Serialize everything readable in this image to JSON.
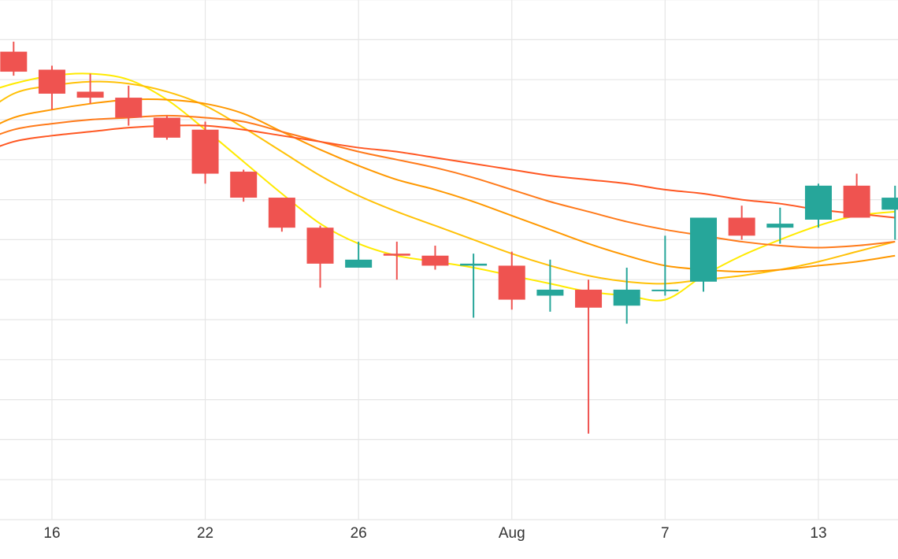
{
  "chart_data": {
    "type": "candlestick",
    "x_tick_labels": [
      {
        "label": "16",
        "index": 1
      },
      {
        "label": "22",
        "index": 5
      },
      {
        "label": "26",
        "index": 9
      },
      {
        "label": "Aug",
        "index": 13
      },
      {
        "label": "7",
        "index": 17
      },
      {
        "label": "13",
        "index": 21
      }
    ],
    "ylim": [
      0,
      13
    ],
    "y_grid_lines": [
      1,
      2,
      3,
      4,
      5,
      6,
      7,
      8,
      9,
      10,
      11,
      12,
      13
    ],
    "grid": true,
    "colors": {
      "up": "#26a69a",
      "down": "#ef5350",
      "ma_lines": [
        "#ffea00",
        "#ffc107",
        "#ff9800",
        "#ff7a1a",
        "#ff5722"
      ]
    },
    "candles": [
      {
        "open": 11.7,
        "high": 11.95,
        "low": 11.1,
        "close": 11.2
      },
      {
        "open": 11.25,
        "high": 11.35,
        "low": 10.25,
        "close": 10.65
      },
      {
        "open": 10.7,
        "high": 11.15,
        "low": 10.4,
        "close": 10.55
      },
      {
        "open": 10.55,
        "high": 10.85,
        "low": 9.85,
        "close": 10.05
      },
      {
        "open": 10.05,
        "high": 10.1,
        "low": 9.5,
        "close": 9.55
      },
      {
        "open": 9.75,
        "high": 9.95,
        "low": 8.4,
        "close": 8.65
      },
      {
        "open": 8.7,
        "high": 8.75,
        "low": 7.95,
        "close": 8.05
      },
      {
        "open": 8.05,
        "high": 8.05,
        "low": 7.2,
        "close": 7.3
      },
      {
        "open": 7.3,
        "high": 7.35,
        "low": 5.8,
        "close": 6.4
      },
      {
        "open": 6.3,
        "high": 6.95,
        "low": 6.3,
        "close": 6.5
      },
      {
        "open": 6.65,
        "high": 6.95,
        "low": 6.0,
        "close": 6.6
      },
      {
        "open": 6.6,
        "high": 6.85,
        "low": 6.25,
        "close": 6.35
      },
      {
        "open": 6.35,
        "high": 6.65,
        "low": 5.05,
        "close": 6.4
      },
      {
        "open": 6.35,
        "high": 6.7,
        "low": 5.25,
        "close": 5.5
      },
      {
        "open": 5.6,
        "high": 6.5,
        "low": 5.2,
        "close": 5.75
      },
      {
        "open": 5.75,
        "high": 6.0,
        "low": 2.15,
        "close": 5.3
      },
      {
        "open": 5.35,
        "high": 6.3,
        "low": 4.9,
        "close": 5.75
      },
      {
        "open": 5.75,
        "high": 7.1,
        "low": 5.6,
        "close": 5.75
      },
      {
        "open": 5.95,
        "high": 7.55,
        "low": 5.7,
        "close": 7.55
      },
      {
        "open": 7.55,
        "high": 7.85,
        "low": 7.0,
        "close": 7.1
      },
      {
        "open": 7.3,
        "high": 7.8,
        "low": 6.9,
        "close": 7.4
      },
      {
        "open": 7.5,
        "high": 8.4,
        "low": 7.3,
        "close": 8.35
      },
      {
        "open": 8.35,
        "high": 8.65,
        "low": 7.6,
        "close": 7.55
      },
      {
        "open": 7.75,
        "high": 8.35,
        "low": 7.0,
        "close": 8.05
      }
    ],
    "ma_series": [
      {
        "values": [
          [
            -1,
            10.6
          ],
          [
            0,
            10.9
          ],
          [
            1,
            11.1
          ],
          [
            2,
            11.15
          ],
          [
            3,
            11.0
          ],
          [
            4,
            10.5
          ],
          [
            5,
            9.75
          ],
          [
            6,
            8.95
          ],
          [
            7,
            8.15
          ],
          [
            8,
            7.4
          ],
          [
            9,
            6.9
          ],
          [
            10,
            6.6
          ],
          [
            11,
            6.45
          ],
          [
            12,
            6.3
          ],
          [
            13,
            6.1
          ],
          [
            14,
            5.9
          ],
          [
            15,
            5.7
          ],
          [
            16,
            5.6
          ],
          [
            17,
            5.5
          ],
          [
            18,
            6.1
          ],
          [
            19,
            6.6
          ],
          [
            20,
            7.0
          ],
          [
            21,
            7.35
          ],
          [
            22,
            7.6
          ],
          [
            23,
            7.7
          ]
        ]
      },
      {
        "values": [
          [
            -1,
            10.0
          ],
          [
            0,
            10.65
          ],
          [
            1,
            10.85
          ],
          [
            2,
            10.95
          ],
          [
            3,
            10.9
          ],
          [
            4,
            10.7
          ],
          [
            5,
            10.35
          ],
          [
            6,
            9.8
          ],
          [
            7,
            9.2
          ],
          [
            8,
            8.6
          ],
          [
            9,
            8.1
          ],
          [
            10,
            7.7
          ],
          [
            11,
            7.35
          ],
          [
            12,
            7.0
          ],
          [
            13,
            6.65
          ],
          [
            14,
            6.35
          ],
          [
            15,
            6.1
          ],
          [
            16,
            5.95
          ],
          [
            17,
            5.9
          ],
          [
            18,
            6.0
          ],
          [
            19,
            6.1
          ],
          [
            20,
            6.25
          ],
          [
            21,
            6.45
          ],
          [
            22,
            6.7
          ],
          [
            23,
            6.95
          ]
        ]
      },
      {
        "values": [
          [
            -1,
            9.6
          ],
          [
            0,
            10.05
          ],
          [
            1,
            10.25
          ],
          [
            2,
            10.4
          ],
          [
            3,
            10.5
          ],
          [
            4,
            10.5
          ],
          [
            5,
            10.4
          ],
          [
            6,
            10.15
          ],
          [
            7,
            9.7
          ],
          [
            8,
            9.25
          ],
          [
            9,
            8.85
          ],
          [
            10,
            8.5
          ],
          [
            11,
            8.25
          ],
          [
            12,
            7.95
          ],
          [
            13,
            7.6
          ],
          [
            14,
            7.25
          ],
          [
            15,
            6.9
          ],
          [
            16,
            6.6
          ],
          [
            17,
            6.35
          ],
          [
            18,
            6.25
          ],
          [
            19,
            6.2
          ],
          [
            20,
            6.25
          ],
          [
            21,
            6.35
          ],
          [
            22,
            6.45
          ],
          [
            23,
            6.6
          ]
        ]
      },
      {
        "values": [
          [
            -1,
            9.4
          ],
          [
            0,
            9.75
          ],
          [
            1,
            9.9
          ],
          [
            2,
            10.0
          ],
          [
            3,
            10.05
          ],
          [
            4,
            10.1
          ],
          [
            5,
            10.05
          ],
          [
            6,
            9.95
          ],
          [
            7,
            9.7
          ],
          [
            8,
            9.45
          ],
          [
            9,
            9.2
          ],
          [
            10,
            9.0
          ],
          [
            11,
            8.8
          ],
          [
            12,
            8.55
          ],
          [
            13,
            8.25
          ],
          [
            14,
            7.95
          ],
          [
            15,
            7.7
          ],
          [
            16,
            7.45
          ],
          [
            17,
            7.25
          ],
          [
            18,
            7.1
          ],
          [
            19,
            6.95
          ],
          [
            20,
            6.85
          ],
          [
            21,
            6.8
          ],
          [
            22,
            6.85
          ],
          [
            23,
            6.95
          ]
        ]
      },
      {
        "values": [
          [
            -1,
            9.1
          ],
          [
            0,
            9.45
          ],
          [
            1,
            9.6
          ],
          [
            2,
            9.7
          ],
          [
            3,
            9.8
          ],
          [
            4,
            9.85
          ],
          [
            5,
            9.85
          ],
          [
            6,
            9.75
          ],
          [
            7,
            9.6
          ],
          [
            8,
            9.45
          ],
          [
            9,
            9.3
          ],
          [
            10,
            9.2
          ],
          [
            11,
            9.05
          ],
          [
            12,
            8.9
          ],
          [
            13,
            8.75
          ],
          [
            14,
            8.6
          ],
          [
            15,
            8.5
          ],
          [
            16,
            8.4
          ],
          [
            17,
            8.25
          ],
          [
            18,
            8.15
          ],
          [
            19,
            8.0
          ],
          [
            20,
            7.9
          ],
          [
            21,
            7.75
          ],
          [
            22,
            7.65
          ],
          [
            23,
            7.55
          ]
        ]
      }
    ]
  }
}
